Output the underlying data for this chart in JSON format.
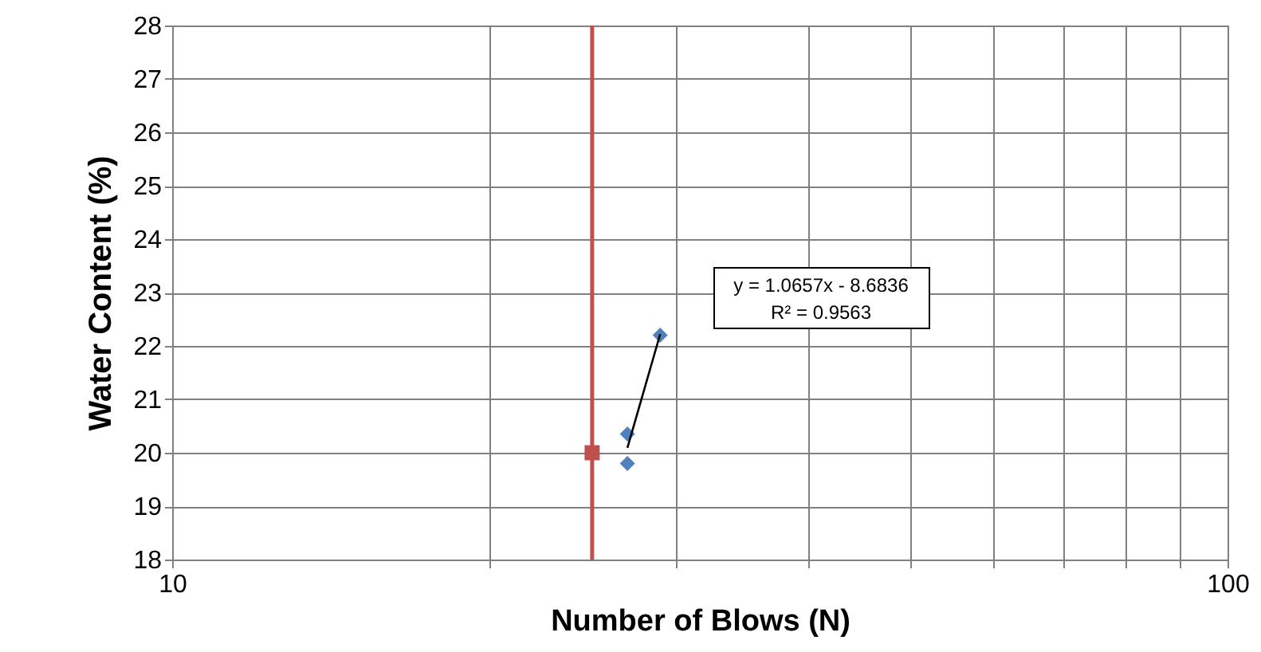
{
  "chart_data": {
    "type": "scatter",
    "xlabel": "Number of Blows (N)",
    "ylabel": "Water Content (%)",
    "log": "x",
    "grid": true,
    "xlim": [
      10,
      100
    ],
    "xticks": [
      10,
      {
        "value": 20,
        "label": null
      },
      {
        "value": 30,
        "label": null
      },
      {
        "value": 40,
        "label": null
      },
      {
        "value": 50,
        "label": null
      },
      {
        "value": 60,
        "label": null
      },
      {
        "value": 70,
        "label": null
      },
      {
        "value": 80,
        "label": null
      },
      {
        "value": 90,
        "label": null
      },
      100
    ],
    "ylim": [
      18,
      28
    ],
    "yticks": [
      18,
      19,
      20,
      21,
      22,
      23,
      24,
      25,
      26,
      27,
      28
    ],
    "series": [
      {
        "type": "scatter",
        "marker": "diamond",
        "color": "#4f81bd",
        "x": [
          27,
          27,
          29
        ],
        "values": [
          19.8,
          20.35,
          22.2
        ]
      },
      {
        "type": "line",
        "marker": "none",
        "color": "#000000",
        "x": [
          27,
          29
        ],
        "values": [
          20.09,
          22.22
        ]
      },
      {
        "type": "scatter",
        "marker": "square",
        "color": "#c0504d",
        "x": [
          25
        ],
        "values": [
          20
        ]
      }
    ],
    "ref_lines": [
      {
        "axis": "x",
        "value": 25,
        "color": "#c0504d"
      }
    ],
    "annotations": [
      "y = 1.0657x - 8.6836",
      "R² = 0.9563"
    ]
  }
}
